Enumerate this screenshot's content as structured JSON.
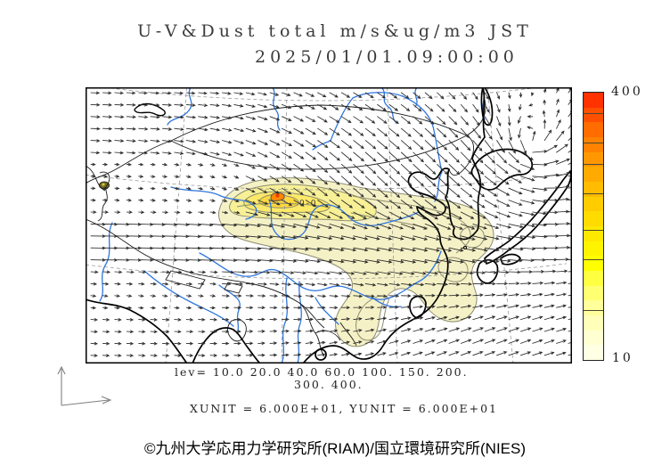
{
  "title": {
    "line1": "U-V&Dust total m/s&ug/m3 JST",
    "line2": "2025/01/01.09:00:00"
  },
  "colorbar": {
    "max_label": "400",
    "min_label": "10",
    "levels": [
      10,
      20,
      40,
      60,
      100,
      150,
      200,
      300,
      400
    ],
    "colors_top_to_bottom": [
      "#ff3200",
      "#ff5000",
      "#ff6c00",
      "#ff8200",
      "#ff9800",
      "#ffaa00",
      "#ffbc00",
      "#ffcc00",
      "#ffdb00",
      "#ffe800",
      "#fff400",
      "#ffff00",
      "#ffff42",
      "#ffff72",
      "#ffff9b",
      "#ffffba",
      "#ffffd2",
      "#ffffe4"
    ]
  },
  "legend": {
    "line1": "lev= 10.0 20.0 40.0 60.0 100. 150. 200.",
    "line2": "300. 400.",
    "units_line": "XUNIT = 6.000E+01, YUNIT = 6.000E+01"
  },
  "map": {
    "contour_label": "0-0",
    "wind": {
      "color": "#2a2a2a",
      "spacing": 13.4
    },
    "colors": {
      "coast": "#000000",
      "border": "#1c1c1c",
      "river": "#2f76dd",
      "graticule": "#999999",
      "contour_line": "#8c8c70",
      "dust_outer": "#f5f1c6",
      "dust_mid": "#f7f096",
      "dust_high": "#fce969",
      "dust_vhigh": "#ffd83e",
      "dust_core": "#ff8a00",
      "dust_core_center": "#e83e00",
      "west_source": "#7a6e22"
    }
  },
  "footer": {
    "copyright": "©九州大学応用力学研究所(RIAM)/国立環境研究所(NIES)"
  }
}
